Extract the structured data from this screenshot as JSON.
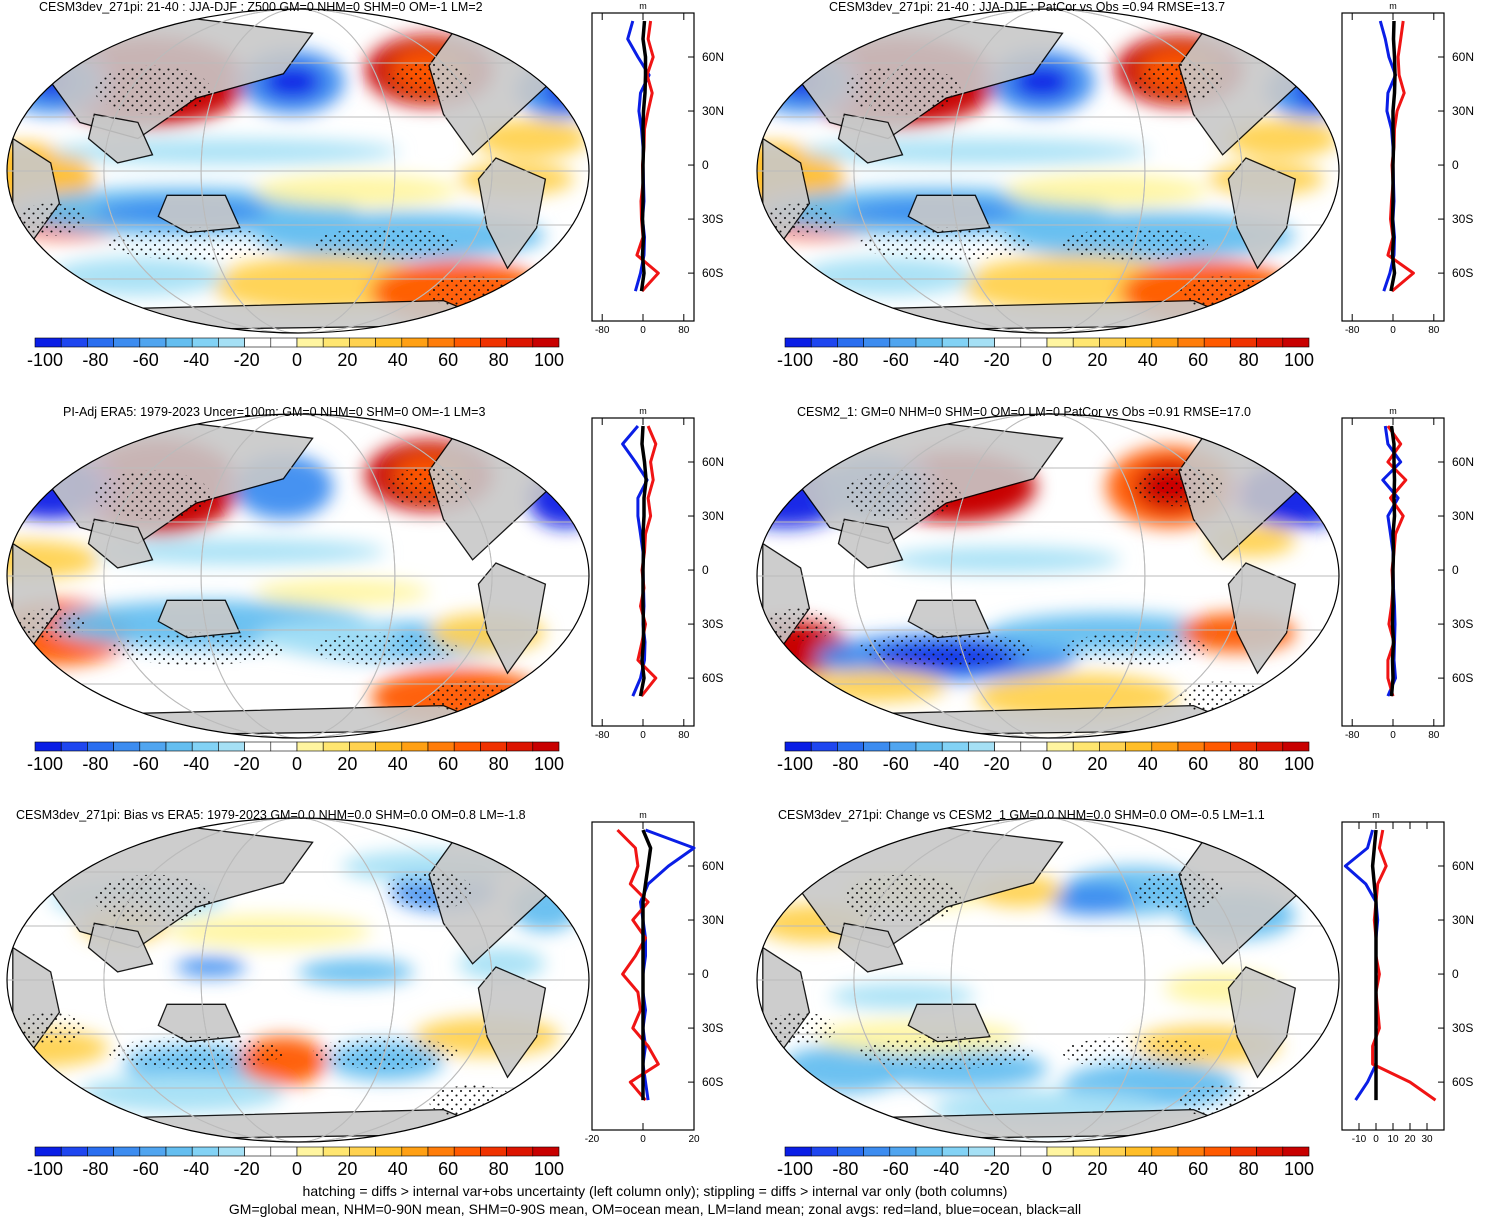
{
  "footer": {
    "line1": "hatching = diffs > internal var+obs uncertainty (left column only); stippling = diffs > internal var only (both columns)",
    "line2": "GM=global mean, NHM=0-90N mean, SHM=0-90S mean, OM=ocean mean, LM=land mean; zonal avgs: red=land, blue=ocean, black=all"
  },
  "colorbar": {
    "colors": [
      "#0a1ee6",
      "#1e46f0",
      "#2a6ef0",
      "#3c8cf0",
      "#50a5f0",
      "#64bef0",
      "#82d2f5",
      "#a5e0f5",
      "#ffffff",
      "#ffffff",
      "#fff5a0",
      "#ffe670",
      "#ffd250",
      "#ffbe28",
      "#ffa014",
      "#ff7d0a",
      "#ff5a00",
      "#f03200",
      "#dc1400",
      "#c80000"
    ],
    "tick_labels": [
      "-100",
      "-80",
      "-60",
      "-40",
      "-20",
      "0",
      "20",
      "40",
      "60",
      "80",
      "100"
    ]
  },
  "lat_labels": [
    "60N",
    "30N",
    "0",
    "30S",
    "60S"
  ],
  "zonal_unit": "m",
  "chart_data": [
    {
      "type": "map",
      "title": "CESM3dev_271pi: 21-40 : JJA-DJF : Z500 GM=0 NHM=0 SHM=0 OM=-1 LM=2",
      "colorbar_range": [
        -100,
        100
      ],
      "zonal_xticks": [
        "-80",
        "0",
        "80"
      ],
      "zonal_xlim": [
        -100,
        100
      ],
      "lat": [
        80,
        70,
        60,
        50,
        40,
        30,
        20,
        10,
        0,
        -10,
        -20,
        -30,
        -40,
        -50,
        -60,
        -70
      ],
      "zonal_land": [
        15,
        10,
        20,
        8,
        18,
        10,
        3,
        2,
        -1,
        0,
        -4,
        -3,
        0,
        -12,
        30,
        -2
      ],
      "zonal_ocean": [
        -20,
        -30,
        -10,
        12,
        -5,
        -8,
        -3,
        0,
        0,
        1,
        2,
        -1,
        3,
        2,
        -5,
        -15
      ],
      "zonal_all": [
        3,
        0,
        5,
        5,
        4,
        1,
        0,
        1,
        0,
        0,
        0,
        -1,
        1,
        -1,
        2,
        -3
      ]
    },
    {
      "type": "map",
      "title": "CESM3dev_271pi: 21-40 : JJA-DJF : PatCor vs Obs =0.94 RMSE=13.7",
      "colorbar_range": [
        -100,
        100
      ],
      "zonal_xticks": [
        "-80",
        "0",
        "80"
      ],
      "zonal_xlim": [
        -100,
        100
      ],
      "lat": [
        80,
        70,
        60,
        50,
        40,
        30,
        20,
        10,
        0,
        -10,
        -20,
        -30,
        -40,
        -50,
        -60,
        -70
      ],
      "zonal_land": [
        20,
        15,
        10,
        12,
        22,
        8,
        3,
        2,
        -2,
        0,
        -3,
        -5,
        0,
        -10,
        40,
        -2
      ],
      "zonal_ocean": [
        -25,
        -15,
        -8,
        5,
        -10,
        -12,
        -3,
        0,
        0,
        1,
        2,
        0,
        3,
        2,
        -6,
        -18
      ],
      "zonal_all": [
        2,
        1,
        3,
        4,
        3,
        0,
        0,
        1,
        0,
        0,
        0,
        -1,
        1,
        -1,
        3,
        -4
      ]
    },
    {
      "type": "map",
      "title": "PI-Adj ERA5: 1979-2023 Uncer=100m: GM=0 NHM=0 SHM=0 OM=-1 LM=3",
      "colorbar_range": [
        -100,
        100
      ],
      "zonal_xticks": [
        "-80",
        "0",
        "80"
      ],
      "zonal_xlim": [
        -100,
        100
      ],
      "lat": [
        80,
        70,
        60,
        50,
        40,
        30,
        20,
        10,
        0,
        -10,
        -20,
        -30,
        -40,
        -50,
        -60,
        -70
      ],
      "zonal_land": [
        10,
        25,
        15,
        20,
        10,
        15,
        5,
        3,
        -2,
        2,
        -5,
        5,
        -2,
        -10,
        25,
        -3
      ],
      "zonal_ocean": [
        -10,
        -40,
        -15,
        8,
        -10,
        -10,
        -5,
        0,
        0,
        1,
        2,
        0,
        4,
        3,
        -5,
        -20
      ],
      "zonal_all": [
        0,
        -2,
        3,
        6,
        2,
        2,
        0,
        1,
        0,
        0,
        0,
        1,
        1,
        -2,
        2,
        -5
      ]
    },
    {
      "type": "map",
      "title": "CESM2_1: GM=0 NHM=0 SHM=0 OM=0 LM=0 PatCor vs Obs =0.91 RMSE=17.0",
      "colorbar_range": [
        -100,
        100
      ],
      "zonal_xticks": [
        "-80",
        "0",
        "80"
      ],
      "zonal_xlim": [
        -100,
        100
      ],
      "lat": [
        80,
        70,
        60,
        50,
        40,
        30,
        20,
        10,
        0,
        -10,
        -20,
        -30,
        -40,
        -50,
        -60,
        -70
      ],
      "zonal_land": [
        -10,
        15,
        -10,
        25,
        -5,
        20,
        5,
        2,
        -2,
        0,
        -3,
        -8,
        2,
        -10,
        -10,
        0
      ],
      "zonal_ocean": [
        -15,
        -10,
        15,
        -20,
        10,
        -10,
        -5,
        0,
        0,
        1,
        3,
        4,
        3,
        2,
        5,
        -10
      ],
      "zonal_all": [
        -3,
        2,
        2,
        3,
        2,
        3,
        0,
        1,
        0,
        0,
        0,
        -1,
        1,
        -1,
        0,
        -3
      ]
    },
    {
      "type": "map",
      "title": "CESM3dev_271pi: Bias vs ERA5: 1979-2023 GM=0.0 NHM=0.0 SHM=0.0 OM=0.8 LM=-1.8",
      "colorbar_range": [
        -100,
        100
      ],
      "zonal_xticks": [
        "-20",
        "0",
        "20"
      ],
      "zonal_xlim": [
        -20,
        20
      ],
      "lat": [
        80,
        70,
        60,
        50,
        40,
        30,
        20,
        10,
        0,
        -10,
        -20,
        -30,
        -40,
        -50,
        -60,
        -70
      ],
      "zonal_land": [
        -10,
        -3,
        -2,
        -5,
        2,
        -4,
        1,
        -3,
        -8,
        -2,
        -1,
        -4,
        2,
        6,
        -5,
        1
      ],
      "zonal_ocean": [
        1,
        20,
        10,
        2,
        -1,
        0,
        1,
        1,
        0,
        0,
        1,
        0,
        1,
        0,
        1,
        2
      ],
      "zonal_all": [
        0,
        3,
        2,
        1,
        0,
        0,
        0,
        0,
        0,
        0,
        0,
        0,
        0,
        0,
        0,
        0
      ]
    },
    {
      "type": "map",
      "title": "CESM3dev_271pi: Change vs CESM2_1 GM=0.0 NHM=0.0 SHM=0.0 OM=-0.5 LM=1.1",
      "colorbar_range": [
        -100,
        100
      ],
      "zonal_xticks": [
        "-10",
        "0",
        "10",
        "20",
        "30"
      ],
      "zonal_xlim": [
        -20,
        40
      ],
      "lat": [
        80,
        70,
        60,
        50,
        40,
        30,
        20,
        10,
        0,
        -10,
        -20,
        -30,
        -40,
        -50,
        -60,
        -70
      ],
      "zonal_land": [
        4,
        2,
        6,
        1,
        0,
        -1,
        0,
        0,
        2,
        0,
        1,
        2,
        -2,
        -2,
        20,
        35
      ],
      "zonal_ocean": [
        -2,
        -5,
        -18,
        -6,
        0,
        1,
        0,
        0,
        0,
        0,
        0,
        0,
        0,
        0,
        -5,
        -12
      ],
      "zonal_all": [
        0,
        -1,
        -2,
        -1,
        0,
        0,
        0,
        0,
        0,
        0,
        0,
        0,
        0,
        0,
        0,
        0
      ]
    }
  ]
}
